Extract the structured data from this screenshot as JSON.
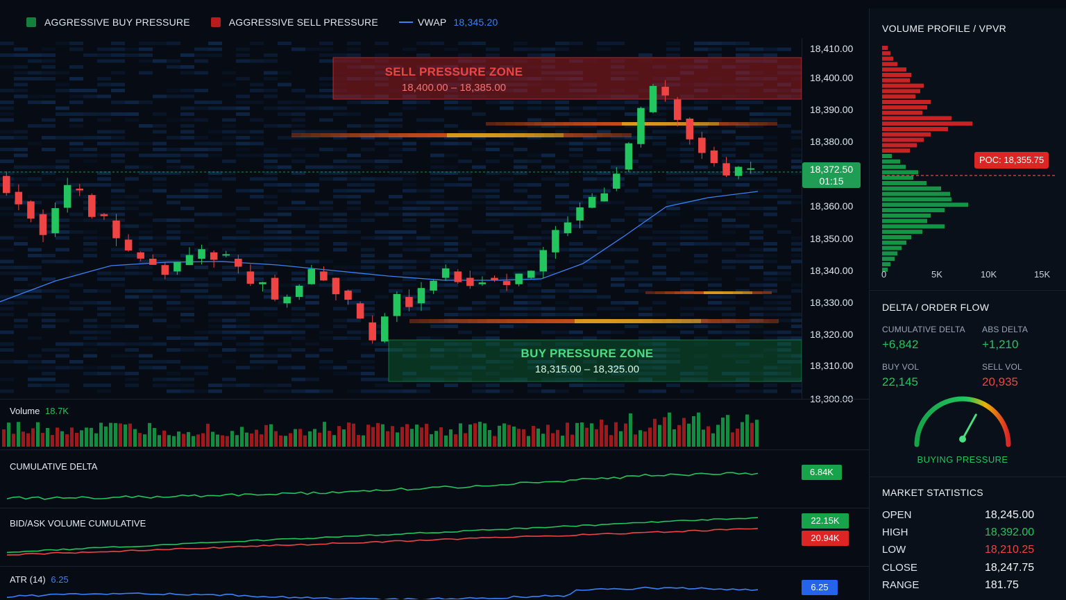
{
  "legend": {
    "buy_label": "AGGRESSIVE BUY PRESSURE",
    "sell_label": "AGGRESSIVE SELL PRESSURE",
    "vwap_label": "VWAP",
    "vwap_value": "18,345.20",
    "colors": {
      "buy": "#15803d",
      "sell": "#b91c1c",
      "vwap": "#3b82f6"
    }
  },
  "price_axis": {
    "ticks": [
      "18,410.00",
      "18,400.00",
      "18,390.00",
      "18,380.00",
      "18,372.50",
      "18,360.00",
      "18,350.00",
      "18,340.00",
      "18,330.00",
      "18,320.00",
      "18,310.00",
      "18,300.00"
    ],
    "current_price": "18,372.50",
    "countdown": "01:15"
  },
  "zones": {
    "sell": {
      "title": "SELL PRESSURE ZONE",
      "range": "18,400.00 – 18,385.00"
    },
    "buy": {
      "title": "BUY PRESSURE ZONE",
      "range": "18,315.00 – 18,325.00"
    }
  },
  "volume_pane": {
    "label": "Volume",
    "value": "18.7K"
  },
  "delta_pane": {
    "label": "CUMULATIVE DELTA",
    "value": "6.84K"
  },
  "bidask_pane": {
    "label": "BID/ASK VOLUME CUMULATIVE",
    "bid_value": "22.15K",
    "ask_value": "20.94K"
  },
  "atr_pane": {
    "label": "ATR (14)",
    "value": "6.25"
  },
  "volume_profile": {
    "title": "VOLUME PROFILE / VPVR",
    "poc_label": "POC:",
    "poc_value": "18,355.75",
    "axis": [
      "0",
      "5K",
      "10K",
      "15K"
    ]
  },
  "delta_panel": {
    "title": "DELTA / ORDER FLOW",
    "cum_delta_label": "CUMULATIVE DELTA",
    "cum_delta_value": "+6,842",
    "abs_delta_label": "ABS DELTA",
    "abs_delta_value": "+1,210",
    "buy_vol_label": "BUY VOL",
    "buy_vol_value": "22,145",
    "sell_vol_label": "SELL VOL",
    "sell_vol_value": "20,935",
    "gauge_label": "BUYING PRESSURE",
    "gauge_level": 0.66
  },
  "market_stats": {
    "title": "MARKET STATISTICS",
    "rows": [
      {
        "label": "OPEN",
        "value": "18,245.00"
      },
      {
        "label": "HIGH",
        "value": "18,392.00"
      },
      {
        "label": "LOW",
        "value": "18,210.25"
      },
      {
        "label": "CLOSE",
        "value": "18,247.75"
      },
      {
        "label": "RANGE",
        "value": "181.75"
      }
    ]
  }
}
